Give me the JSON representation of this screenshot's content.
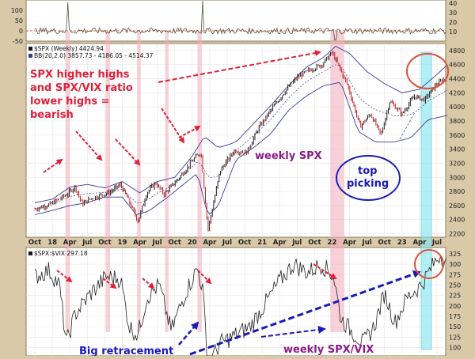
{
  "chart_data": [
    {
      "panel": "top-indicator",
      "type": "line",
      "y_ticks_left": [
        100,
        50,
        0,
        -50
      ],
      "y_ticks_right": [
        40,
        30,
        20,
        10
      ],
      "reference_line": 0
    },
    {
      "panel": "price",
      "type": "line",
      "legend": [
        {
          "swatch": "#1a1a1a",
          "text": "$SPX (Weekly) 4424.94"
        },
        {
          "swatch": "#3b3b9a",
          "text": "BB(20,2.0) 3857.73 - 4186.05 - 4514.37"
        }
      ],
      "x_labels": [
        "Oct",
        "18",
        "Apr",
        "Jul",
        "Oct",
        "19",
        "Apr",
        "Jul",
        "Oct",
        "20",
        "Apr",
        "Jul",
        "Oct",
        "21",
        "Apr",
        "Jul",
        "Oct",
        "22",
        "Apr",
        "Jul",
        "Oct",
        "23",
        "Apr",
        "Jul"
      ],
      "y_ticks": [
        4800,
        4600,
        4400,
        4200,
        4000,
        3800,
        3600,
        3400,
        3200,
        3000,
        2800,
        2600,
        2400,
        2200
      ],
      "ylim": [
        2150,
        4900
      ],
      "price_anchors": [
        [
          0,
          2550
        ],
        [
          0.9,
          2620
        ],
        [
          1.9,
          2770
        ],
        [
          2.3,
          2870
        ],
        [
          2.7,
          2620
        ],
        [
          3.2,
          2700
        ],
        [
          4.3,
          2790
        ],
        [
          4.9,
          2900
        ],
        [
          5.4,
          2650
        ],
        [
          5.9,
          2380
        ],
        [
          6.4,
          2780
        ],
        [
          6.9,
          2920
        ],
        [
          7.4,
          2760
        ],
        [
          8.2,
          2980
        ],
        [
          9.1,
          3260
        ],
        [
          9.5,
          3360
        ],
        [
          9.9,
          2250
        ],
        [
          10.6,
          3100
        ],
        [
          11.4,
          3380
        ],
        [
          12.1,
          3350
        ],
        [
          12.8,
          3700
        ],
        [
          13.4,
          3920
        ],
        [
          14.3,
          4220
        ],
        [
          15.0,
          4420
        ],
        [
          15.7,
          4520
        ],
        [
          16.4,
          4600
        ],
        [
          17.0,
          4770
        ],
        [
          17.3,
          4620
        ],
        [
          17.9,
          4300
        ],
        [
          18.6,
          3720
        ],
        [
          19.2,
          3900
        ],
        [
          19.8,
          3600
        ],
        [
          20.3,
          4080
        ],
        [
          21.0,
          3900
        ],
        [
          21.7,
          4150
        ],
        [
          22.3,
          4100
        ],
        [
          22.9,
          4300
        ],
        [
          23.6,
          4430
        ]
      ],
      "bb_upper": [
        [
          0,
          2640
        ],
        [
          1.0,
          2690
        ],
        [
          2.0,
          2860
        ],
        [
          3.0,
          2900
        ],
        [
          4.0,
          2850
        ],
        [
          5.0,
          2940
        ],
        [
          6.0,
          2780
        ],
        [
          7.0,
          2940
        ],
        [
          8.0,
          3000
        ],
        [
          9.0,
          3300
        ],
        [
          9.7,
          3580
        ],
        [
          10.5,
          3420
        ],
        [
          11.5,
          3500
        ],
        [
          12.5,
          3760
        ],
        [
          13.5,
          4020
        ],
        [
          14.5,
          4300
        ],
        [
          15.5,
          4560
        ],
        [
          16.5,
          4700
        ],
        [
          17.2,
          4860
        ],
        [
          18.0,
          4760
        ],
        [
          19.0,
          4500
        ],
        [
          20.0,
          4330
        ],
        [
          21.0,
          4200
        ],
        [
          22.0,
          4250
        ],
        [
          23.0,
          4460
        ],
        [
          23.6,
          4600
        ]
      ],
      "bb_lower": [
        [
          0,
          2470
        ],
        [
          1.0,
          2530
        ],
        [
          2.0,
          2600
        ],
        [
          3.0,
          2640
        ],
        [
          4.0,
          2720
        ],
        [
          5.0,
          2720
        ],
        [
          5.8,
          2470
        ],
        [
          6.5,
          2520
        ],
        [
          7.5,
          2700
        ],
        [
          8.5,
          2900
        ],
        [
          9.3,
          3060
        ],
        [
          9.9,
          2450
        ],
        [
          10.5,
          2600
        ],
        [
          11.5,
          3250
        ],
        [
          12.5,
          3420
        ],
        [
          13.5,
          3620
        ],
        [
          14.5,
          3950
        ],
        [
          15.5,
          4150
        ],
        [
          16.5,
          4300
        ],
        [
          17.5,
          4350
        ],
        [
          18.5,
          3650
        ],
        [
          19.5,
          3500
        ],
        [
          20.5,
          3500
        ],
        [
          21.5,
          3560
        ],
        [
          22.5,
          3820
        ],
        [
          23.6,
          3880
        ]
      ],
      "annotations": [
        {
          "text": "SPX higher highs",
          "color": "red"
        },
        {
          "text": "and SPX/VIX ratio",
          "color": "red"
        },
        {
          "text": "lower highs =",
          "color": "red"
        },
        {
          "text": "bearish",
          "color": "red"
        },
        {
          "text": "weekly SPX",
          "color": "purple"
        },
        {
          "text": "top",
          "color": "blue"
        },
        {
          "text": "picking",
          "color": "blue"
        }
      ]
    },
    {
      "panel": "ratio",
      "type": "line",
      "legend": [
        {
          "swatch": "#1a1a1a",
          "text": "$SPX:$VIX 297.18"
        }
      ],
      "y_ticks": [
        325,
        300,
        275,
        250,
        225,
        200,
        175,
        150,
        125,
        100
      ],
      "ylim": [
        80,
        340
      ],
      "ratio_anchors": [
        [
          0,
          270
        ],
        [
          0.8,
          285
        ],
        [
          1.4,
          250
        ],
        [
          1.8,
          110
        ],
        [
          2.3,
          180
        ],
        [
          3.2,
          230
        ],
        [
          4.1,
          270
        ],
        [
          4.9,
          265
        ],
        [
          5.4,
          150
        ],
        [
          5.9,
          130
        ],
        [
          6.4,
          220
        ],
        [
          7.1,
          250
        ],
        [
          7.8,
          140
        ],
        [
          8.6,
          230
        ],
        [
          9.3,
          290
        ],
        [
          9.6,
          240
        ],
        [
          9.9,
          60
        ],
        [
          10.6,
          110
        ],
        [
          11.5,
          130
        ],
        [
          12.3,
          150
        ],
        [
          13.1,
          200
        ],
        [
          14.0,
          260
        ],
        [
          14.8,
          300
        ],
        [
          15.6,
          280
        ],
        [
          16.4,
          300
        ],
        [
          17.1,
          270
        ],
        [
          17.5,
          170
        ],
        [
          18.1,
          140
        ],
        [
          18.8,
          110
        ],
        [
          19.4,
          150
        ],
        [
          20.0,
          230
        ],
        [
          20.6,
          160
        ],
        [
          21.3,
          220
        ],
        [
          22.1,
          250
        ],
        [
          22.8,
          300
        ],
        [
          23.2,
          325
        ],
        [
          23.6,
          297
        ]
      ],
      "annotations": [
        {
          "text": "Big retracement",
          "color": "blue"
        },
        {
          "text": "weekly SPX/VIX",
          "color": "purple"
        }
      ]
    }
  ]
}
